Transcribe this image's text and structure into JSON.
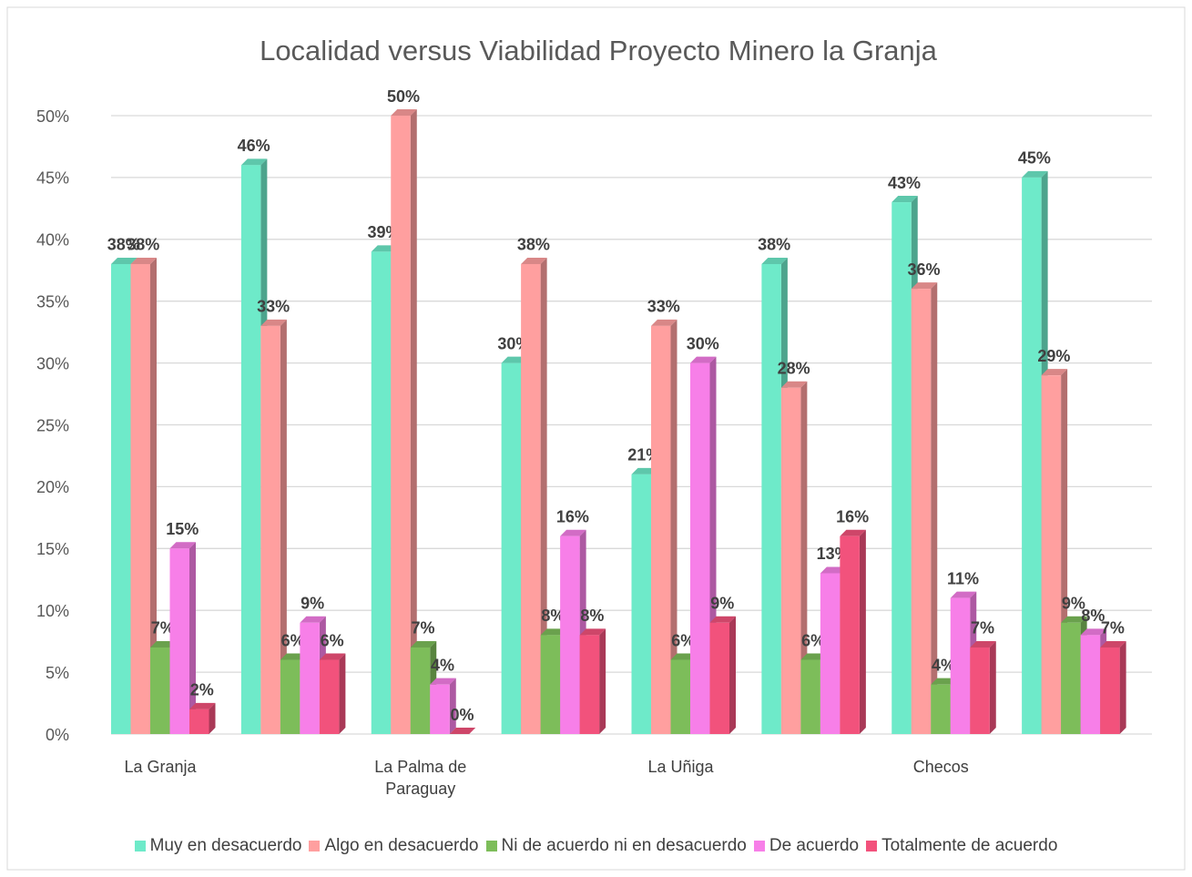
{
  "chart_data": {
    "type": "bar3d",
    "title": "Localidad versus Viabilidad Proyecto Minero la Granja",
    "categories": [
      "La Granja",
      null,
      "La Palma de Paraguay",
      null,
      "La Uñiga",
      null,
      "Checos",
      null
    ],
    "series": [
      {
        "name": "Muy en desacuerdo",
        "color": "#6eeac9",
        "values": [
          38,
          46,
          39,
          30,
          21,
          38,
          43,
          45
        ],
        "value_labels": [
          "38%",
          "46%",
          "39%",
          "30%",
          "21%",
          "38%",
          "43%",
          "45%"
        ]
      },
      {
        "name": "Algo en desacuerdo",
        "color": "#ff9f9f",
        "values": [
          38,
          33,
          50,
          38,
          33,
          28,
          36,
          29
        ],
        "value_labels": [
          "38%",
          "33%",
          "50%",
          "38%",
          "33%",
          "28%",
          "36%",
          "29%"
        ]
      },
      {
        "name": "Ni de acuerdo ni en desacuerdo",
        "color": "#7dbd5a",
        "values": [
          7,
          6,
          7,
          8,
          6,
          6,
          4,
          9
        ],
        "value_labels": [
          "7%",
          "6%",
          "7%",
          "8%",
          "6%",
          "6%",
          "4%",
          "9%"
        ]
      },
      {
        "name": "De acuerdo",
        "color": "#f77fe8",
        "values": [
          15,
          9,
          4,
          16,
          30,
          13,
          11,
          8
        ],
        "value_labels": [
          "15%",
          "9%",
          "4%",
          "16%",
          "30%",
          "13%",
          "11%",
          "8%"
        ]
      },
      {
        "name": "Totalmente de acuerdo",
        "color": "#f2527c",
        "values": [
          2,
          6,
          0,
          8,
          9,
          16,
          7,
          7
        ],
        "value_labels": [
          "2%",
          "6%",
          "0%",
          "8%",
          "9%",
          "16%",
          "7%",
          "7%"
        ]
      }
    ],
    "ylim": [
      0,
      50
    ],
    "yticks": [
      {
        "value": 0,
        "label": "0%"
      },
      {
        "value": 5,
        "label": "5%"
      },
      {
        "value": 10,
        "label": "10%"
      },
      {
        "value": 15,
        "label": "15%"
      },
      {
        "value": 20,
        "label": "20%"
      },
      {
        "value": 25,
        "label": "25%"
      },
      {
        "value": 30,
        "label": "30%"
      },
      {
        "value": 35,
        "label": "35%"
      },
      {
        "value": 40,
        "label": "40%"
      },
      {
        "value": 45,
        "label": "45%"
      },
      {
        "value": 50,
        "label": "50%"
      }
    ],
    "grid": true,
    "legend": "bottom"
  }
}
